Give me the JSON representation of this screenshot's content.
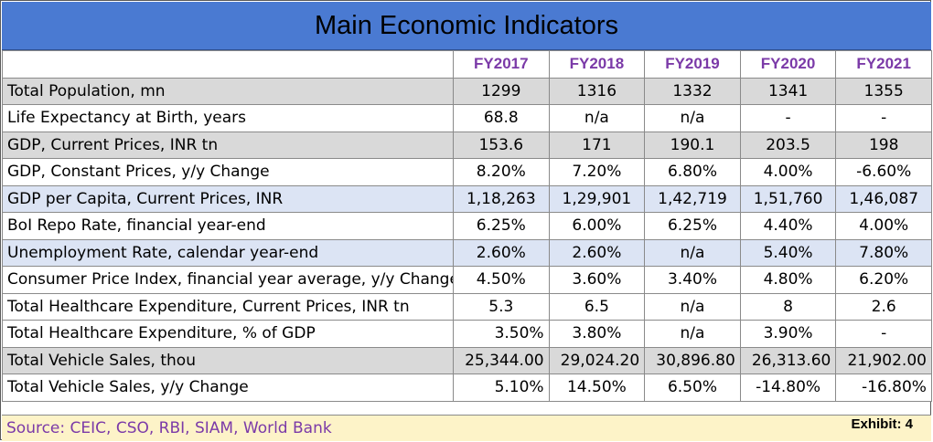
{
  "title": "Main Economic Indicators",
  "columns": [
    "FY2017",
    "FY2018",
    "FY2019",
    "FY2020",
    "FY2021"
  ],
  "rows": [
    {
      "label": "Total Population, mn",
      "style": "gray",
      "values": [
        "1299",
        "1316",
        "1332",
        "1341",
        "1355"
      ]
    },
    {
      "label": "Life Expectancy at Birth, years",
      "style": "white",
      "values": [
        "68.8",
        "n/a",
        "n/a",
        "-",
        "-"
      ]
    },
    {
      "label": "GDP, Current Prices, INR tn",
      "style": "gray",
      "values": [
        "153.6",
        "171",
        "190.1",
        "203.5",
        "198"
      ]
    },
    {
      "label": "GDP, Constant Prices, y/y Change",
      "style": "white",
      "values": [
        "8.20%",
        "7.20%",
        "6.80%",
        "4.00%",
        "-6.60%"
      ]
    },
    {
      "label": "GDP per Capita, Current Prices, INR",
      "style": "blue",
      "values": [
        "1,18,263",
        "1,29,901",
        "1,42,719",
        "1,51,760",
        "1,46,087"
      ]
    },
    {
      "label": "BoI Repo Rate, financial year-end",
      "style": "white",
      "values": [
        "6.25%",
        "6.00%",
        "6.25%",
        "4.40%",
        "4.00%"
      ]
    },
    {
      "label": "Unemployment Rate, calendar year-end",
      "style": "blue",
      "values": [
        "2.60%",
        "2.60%",
        "n/a",
        "5.40%",
        "7.80%"
      ]
    },
    {
      "label": "Consumer Price Index, financial year average, y/y Change",
      "style": "white",
      "values": [
        "4.50%",
        "3.60%",
        "3.40%",
        "4.80%",
        "6.20%"
      ]
    },
    {
      "label": "Total Healthcare Expenditure, Current Prices, INR tn",
      "style": "white",
      "values": [
        "5.3",
        "6.5",
        "n/a",
        "8",
        "2.6"
      ]
    },
    {
      "label": "Total Healthcare Expenditure, % of GDP",
      "style": "white",
      "align": [
        "r",
        "c",
        "c",
        "c",
        "c"
      ],
      "values": [
        "3.50%",
        "3.80%",
        "n/a",
        "3.90%",
        "-"
      ]
    },
    {
      "label": "Total Vehicle Sales, thou",
      "style": "gray",
      "align": [
        "r",
        "r",
        "r",
        "r",
        "r"
      ],
      "values": [
        "25,344.00",
        "29,024.20",
        "30,896.80",
        "26,313.60",
        "21,902.00"
      ]
    },
    {
      "label": "Total Vehicle Sales, y/y Change",
      "style": "white",
      "align": [
        "r",
        "c",
        "c",
        "c",
        "r"
      ],
      "values": [
        "5.10%",
        "14.50%",
        "6.50%",
        "-14.80%",
        "-16.80%"
      ]
    }
  ],
  "footer": {
    "source": "Source: CEIC, CSO, RBI, SIAM, World Bank",
    "exhibit": "Exhibit: 4"
  },
  "colors": {
    "title_bg": "#4a7ad2",
    "header_text": "#7b3aa8",
    "row_gray": "#d9d9d9",
    "row_blue": "#dce4f4",
    "footer_bg": "#fdf3c8"
  }
}
